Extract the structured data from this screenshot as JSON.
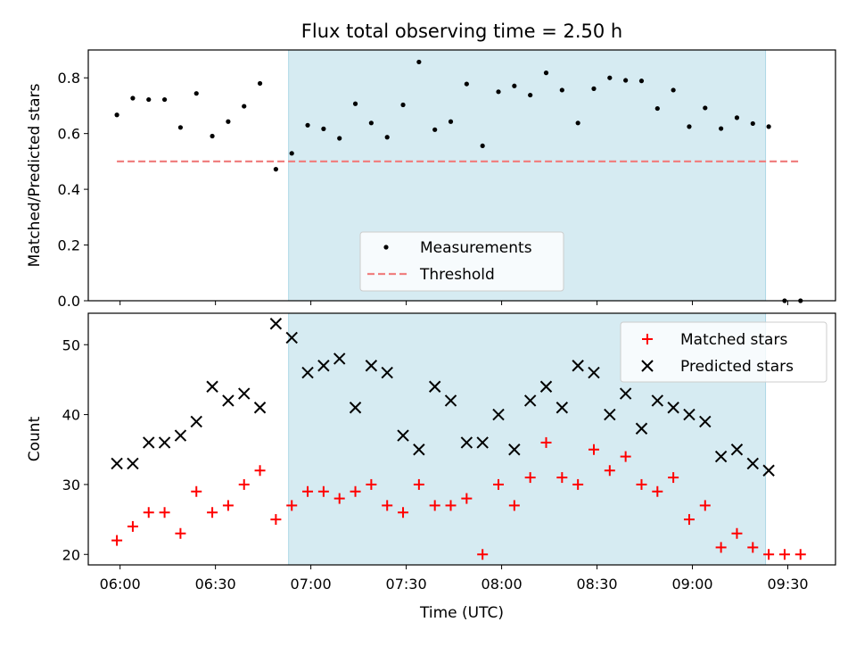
{
  "chart_data": [
    {
      "type": "scatter",
      "title": "Flux total observing time = 2.50 h",
      "ylabel": "Matched/Predicted stars",
      "ylim": [
        0,
        0.9
      ],
      "yticks": [
        "0.0",
        "0.2",
        "0.4",
        "0.6",
        "0.8"
      ],
      "xlim": [
        "05:50",
        "09:45"
      ],
      "grid": false,
      "legend_position": "bottom-center",
      "shaded_interval": [
        "06:53",
        "09:23"
      ],
      "shade_color": "#add8e6",
      "series": [
        {
          "name": "Measurements",
          "marker": "dot",
          "color": "#000000",
          "x": [
            "05:59",
            "06:04",
            "06:09",
            "06:14",
            "06:19",
            "06:24",
            "06:29",
            "06:34",
            "06:39",
            "06:44",
            "06:49",
            "06:54",
            "06:59",
            "07:04",
            "07:09",
            "07:14",
            "07:19",
            "07:24",
            "07:29",
            "07:34",
            "07:39",
            "07:44",
            "07:49",
            "07:54",
            "07:59",
            "08:04",
            "08:09",
            "08:14",
            "08:19",
            "08:24",
            "08:29",
            "08:34",
            "08:39",
            "08:44",
            "08:49",
            "08:54",
            "08:59",
            "09:04",
            "09:09",
            "09:14",
            "09:19",
            "09:24",
            "09:29",
            "09:34"
          ],
          "y": [
            0.667,
            0.727,
            0.722,
            0.722,
            0.622,
            0.744,
            0.591,
            0.643,
            0.698,
            0.78,
            0.472,
            0.529,
            0.63,
            0.617,
            0.583,
            0.707,
            0.638,
            0.587,
            0.703,
            0.857,
            0.614,
            0.643,
            0.778,
            0.556,
            0.75,
            0.771,
            0.738,
            0.818,
            0.756,
            0.638,
            0.761,
            0.8,
            0.791,
            0.789,
            0.69,
            0.756,
            0.625,
            0.692,
            0.618,
            0.657,
            0.636,
            0.625,
            0.0,
            0.0
          ]
        },
        {
          "name": "Threshold",
          "style": "dashed",
          "color": "#f08080",
          "x": [
            "05:59",
            "09:34"
          ],
          "y": [
            0.5,
            0.5
          ]
        }
      ]
    },
    {
      "type": "scatter",
      "xlabel": "Time (UTC)",
      "ylabel": "Count",
      "ylim": [
        18.5,
        54.5
      ],
      "yticks": [
        "20",
        "30",
        "40",
        "50"
      ],
      "xticks": [
        "06:00",
        "06:30",
        "07:00",
        "07:30",
        "08:00",
        "08:30",
        "09:00",
        "09:30"
      ],
      "xlim": [
        "05:50",
        "09:45"
      ],
      "grid": false,
      "legend_position": "top-right",
      "shaded_interval": [
        "06:53",
        "09:23"
      ],
      "shade_color": "#add8e6",
      "series": [
        {
          "name": "Matched stars",
          "marker": "plus",
          "color": "#ff0000",
          "x": [
            "05:59",
            "06:04",
            "06:09",
            "06:14",
            "06:19",
            "06:24",
            "06:29",
            "06:34",
            "06:39",
            "06:44",
            "06:49",
            "06:54",
            "06:59",
            "07:04",
            "07:09",
            "07:14",
            "07:19",
            "07:24",
            "07:29",
            "07:34",
            "07:39",
            "07:44",
            "07:49",
            "07:54",
            "07:59",
            "08:04",
            "08:09",
            "08:14",
            "08:19",
            "08:24",
            "08:29",
            "08:34",
            "08:39",
            "08:44",
            "08:49",
            "08:54",
            "08:59",
            "09:04",
            "09:09",
            "09:14",
            "09:19",
            "09:24",
            "09:29",
            "09:34"
          ],
          "y": [
            22,
            24,
            26,
            26,
            23,
            29,
            26,
            27,
            30,
            32,
            25,
            27,
            29,
            29,
            28,
            29,
            30,
            27,
            26,
            30,
            27,
            27,
            28,
            20,
            30,
            27,
            31,
            36,
            31,
            30,
            35,
            32,
            34,
            30,
            29,
            31,
            25,
            27,
            21,
            23,
            21,
            20,
            20,
            20
          ]
        },
        {
          "name": "Predicted stars",
          "marker": "x",
          "color": "#000000",
          "x": [
            "05:59",
            "06:04",
            "06:09",
            "06:14",
            "06:19",
            "06:24",
            "06:29",
            "06:34",
            "06:39",
            "06:44",
            "06:49",
            "06:54",
            "06:59",
            "07:04",
            "07:09",
            "07:14",
            "07:19",
            "07:24",
            "07:29",
            "07:34",
            "07:39",
            "07:44",
            "07:49",
            "07:54",
            "07:59",
            "08:04",
            "08:09",
            "08:14",
            "08:19",
            "08:24",
            "08:29",
            "08:34",
            "08:39",
            "08:44",
            "08:49",
            "08:54",
            "08:59",
            "09:04",
            "09:09",
            "09:14",
            "09:19",
            "09:24"
          ],
          "y": [
            33,
            33,
            36,
            36,
            37,
            39,
            44,
            42,
            43,
            41,
            53,
            51,
            46,
            47,
            48,
            41,
            47,
            46,
            37,
            35,
            44,
            42,
            36,
            36,
            40,
            35,
            42,
            44,
            41,
            47,
            46,
            40,
            43,
            38,
            42,
            41,
            40,
            39,
            34,
            35,
            33,
            32
          ]
        }
      ]
    }
  ]
}
